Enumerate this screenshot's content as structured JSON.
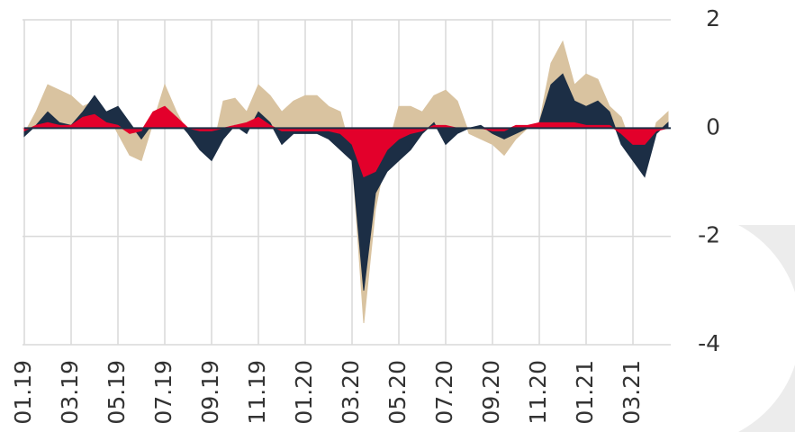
{
  "chart_data": {
    "type": "area",
    "categories": [
      "01.19",
      null,
      null,
      null,
      "03.19",
      null,
      null,
      null,
      "05.19",
      null,
      null,
      null,
      "07.19",
      null,
      null,
      null,
      "09.19",
      null,
      null,
      null,
      "11.19",
      null,
      null,
      null,
      "01.20",
      null,
      null,
      null,
      "03.20",
      null,
      null,
      null,
      "05.20",
      null,
      null,
      null,
      "07.20",
      null,
      null,
      null,
      "09.20",
      null,
      null,
      null,
      "11.20",
      null,
      null,
      null,
      "01.21",
      null,
      null,
      null,
      "03.21",
      null,
      null,
      null
    ],
    "series": [
      {
        "color": "#d9c3a0",
        "values": [
          -0.1,
          0.3,
          0.8,
          0.7,
          0.6,
          0.4,
          0.5,
          0.3,
          -0.1,
          -0.5,
          -0.6,
          0.1,
          0.8,
          0.3,
          -0.1,
          -0.4,
          -0.5,
          0.5,
          0.55,
          0.3,
          0.8,
          0.6,
          0.3,
          0.5,
          0.6,
          0.6,
          0.4,
          0.3,
          -0.5,
          -3.6,
          -1.5,
          -0.4,
          0.4,
          0.4,
          0.3,
          0.6,
          0.7,
          0.5,
          -0.1,
          -0.2,
          -0.3,
          -0.5,
          -0.2,
          0.0,
          0.1,
          1.2,
          1.6,
          0.8,
          1.0,
          0.9,
          0.4,
          0.2,
          -0.4,
          -0.8,
          0.1,
          0.3
        ]
      },
      {
        "color": "#1c2e45",
        "values": [
          -0.15,
          0.05,
          0.3,
          0.1,
          0.05,
          0.3,
          0.6,
          0.3,
          0.4,
          0.1,
          -0.2,
          0.1,
          0.35,
          0.15,
          -0.1,
          -0.4,
          -0.6,
          -0.2,
          0.05,
          -0.1,
          0.3,
          0.1,
          -0.3,
          -0.1,
          -0.1,
          -0.1,
          -0.2,
          -0.4,
          -0.6,
          -3.0,
          -1.2,
          -0.8,
          -0.6,
          -0.4,
          -0.1,
          0.1,
          -0.3,
          -0.1,
          0.0,
          0.05,
          -0.1,
          -0.2,
          -0.1,
          0.0,
          0.1,
          0.8,
          1.0,
          0.5,
          0.4,
          0.5,
          0.3,
          -0.3,
          -0.6,
          -0.9,
          -0.1,
          0.1
        ]
      },
      {
        "color": "#e3002b",
        "values": [
          -0.05,
          0.05,
          0.1,
          0.05,
          0.05,
          0.2,
          0.25,
          0.1,
          0.05,
          -0.1,
          -0.05,
          0.3,
          0.4,
          0.2,
          0.0,
          -0.05,
          -0.05,
          0.0,
          0.05,
          0.1,
          0.2,
          0.05,
          -0.05,
          -0.05,
          -0.05,
          -0.05,
          -0.05,
          -0.1,
          -0.3,
          -0.9,
          -0.8,
          -0.4,
          -0.2,
          -0.1,
          -0.05,
          0.05,
          0.05,
          0.0,
          0.0,
          0.0,
          -0.05,
          -0.05,
          0.05,
          0.05,
          0.1,
          0.1,
          0.1,
          0.1,
          0.05,
          0.05,
          0.05,
          -0.1,
          -0.3,
          -0.3,
          -0.05,
          0.0
        ]
      }
    ],
    "ylim": [
      -4,
      2
    ],
    "yticks": [
      -4,
      -2,
      0,
      2
    ],
    "grid": true
  }
}
